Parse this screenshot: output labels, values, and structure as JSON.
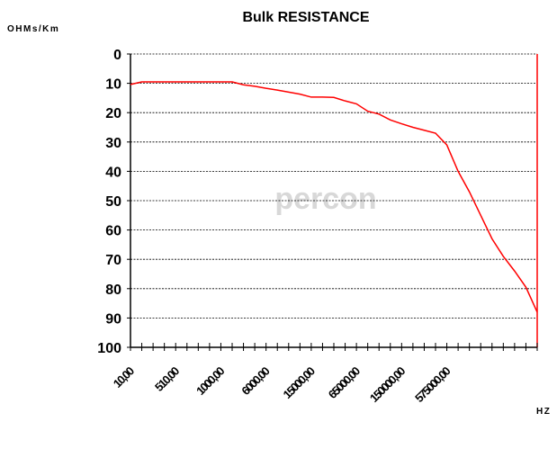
{
  "chart_data": {
    "type": "line",
    "title": "Bulk RESISTANCE",
    "y_label": "OHMs/Km",
    "x_label": "HZ",
    "watermark": "percon",
    "categories": [
      "10,00",
      null,
      null,
      null,
      "510,00",
      null,
      null,
      null,
      "1000,00",
      null,
      null,
      null,
      "6000,00",
      null,
      null,
      null,
      "15000,00",
      null,
      null,
      null,
      "65000,00",
      null,
      null,
      null,
      "150000,00",
      null,
      null,
      null,
      "575000,00",
      null,
      null,
      null,
      null,
      null,
      null,
      null,
      null
    ],
    "series": [
      {
        "name": "Bulk RESISTANCE",
        "color": "#ff0000",
        "values": [
          10.4,
          9.5,
          9.5,
          9.5,
          9.5,
          9.5,
          9.5,
          9.5,
          9.5,
          9.5,
          10.5,
          11,
          11.7,
          12.3,
          13,
          13.7,
          14.7,
          14.7,
          14.8,
          16,
          17,
          19.5,
          20.5,
          22.5,
          23.8,
          25,
          26,
          27,
          31,
          40,
          47,
          55,
          63,
          69,
          74,
          79.5,
          88
        ]
      }
    ],
    "ylim": [
      0,
      100
    ],
    "y_inverted": true,
    "yticks": [
      0,
      10,
      20,
      30,
      40,
      50,
      60,
      70,
      80,
      90,
      100
    ],
    "grid": true
  }
}
